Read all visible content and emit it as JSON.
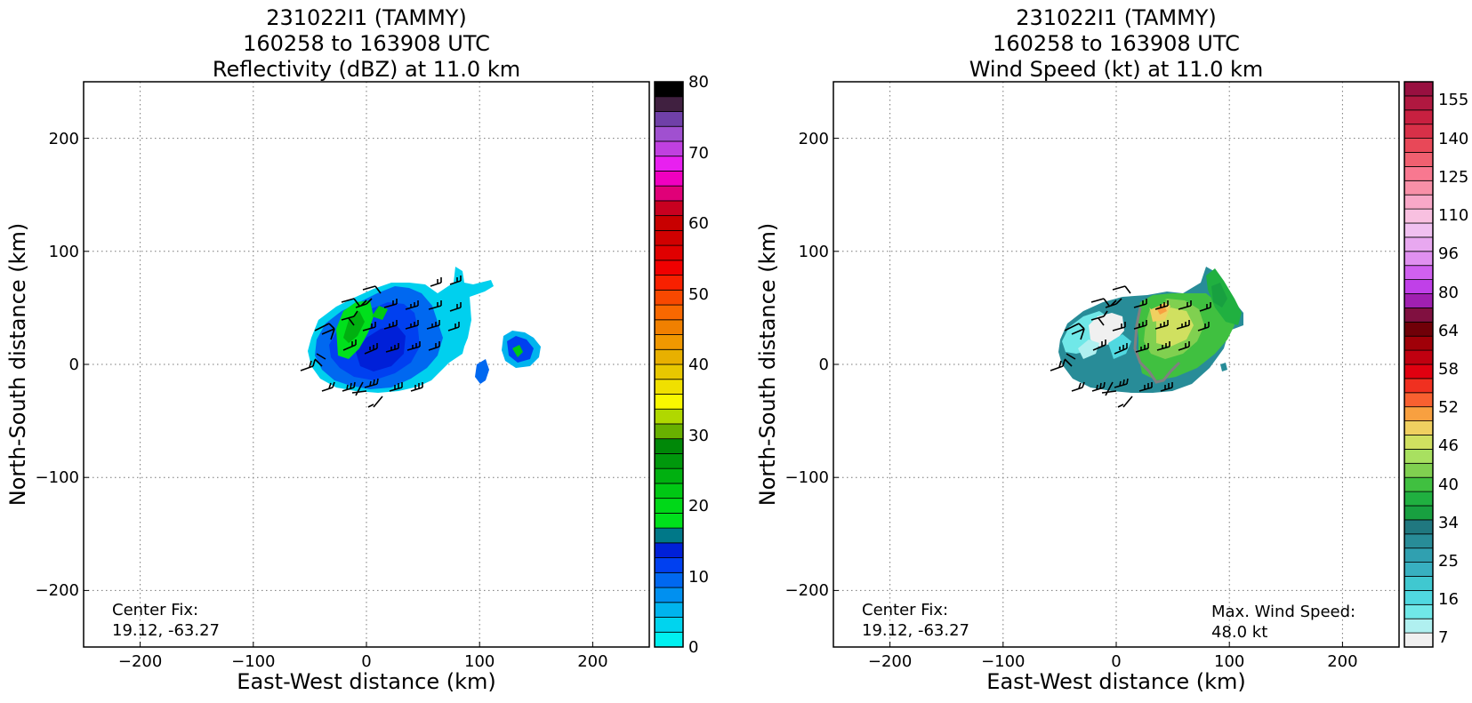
{
  "charts": [
    {
      "id": "reflectivity",
      "title_lines": [
        "231022I1 (TAMMY)",
        "160258 to 163908 UTC",
        "Reflectivity (dBZ) at 11.0 km"
      ],
      "xlabel": "East-West distance (km)",
      "ylabel": "North-South distance (km)",
      "x_ticks": [
        "−200",
        "−100",
        "0",
        "100",
        "200"
      ],
      "y_ticks": [
        "200",
        "100",
        "0",
        "−100",
        "−200"
      ],
      "notes": {
        "center_fix_label": "Center Fix:",
        "center_fix_value": "19.12, -63.27"
      },
      "colorbar_ticks": [
        "0",
        "10",
        "20",
        "30",
        "40",
        "50",
        "60",
        "70",
        "80"
      ],
      "colorbar_colors": [
        "#00f0f0",
        "#00d4ee",
        "#00b4ee",
        "#0090f0",
        "#0068f0",
        "#0040f0",
        "#0020d8",
        "#007888",
        "#00e01c",
        "#00d818",
        "#00c814",
        "#00b010",
        "#00980c",
        "#008808",
        "#68b000",
        "#b0d800",
        "#f8f800",
        "#f0e000",
        "#e8c800",
        "#e8b000",
        "#f09800",
        "#f08000",
        "#f86800",
        "#f84800",
        "#f82000",
        "#f00000",
        "#e00000",
        "#d00000",
        "#c80000",
        "#c80020",
        "#e00078",
        "#f000c0",
        "#e820f0",
        "#c040e0",
        "#a050d0",
        "#7040a8",
        "#402040",
        "#000000"
      ],
      "colorbar_range": [
        0,
        80
      ]
    },
    {
      "id": "wind_speed",
      "title_lines": [
        "231022I1 (TAMMY)",
        "160258 to 163908 UTC",
        "Wind Speed (kt) at 11.0 km"
      ],
      "xlabel": "East-West distance (km)",
      "ylabel": "North-South distance (km)",
      "x_ticks": [
        "−200",
        "−100",
        "0",
        "100",
        "200"
      ],
      "y_ticks": [
        "200",
        "100",
        "0",
        "−100",
        "−200"
      ],
      "notes": {
        "center_fix_label": "Center Fix:",
        "center_fix_value": "19.12, -63.27",
        "max_wind_label": "Max. Wind Speed:",
        "max_wind_value": "48.0 kt"
      },
      "colorbar_ticks": [
        "7",
        "16",
        "25",
        "34",
        "40",
        "46",
        "52",
        "58",
        "64",
        "80",
        "96",
        "110",
        "125",
        "140",
        "155"
      ],
      "colorbar_colors": [
        "#f0f0f0",
        "#b0f0f0",
        "#70e8e8",
        "#50d8e0",
        "#40c8d0",
        "#38b0c0",
        "#30a0b0",
        "#288c98",
        "#207880",
        "#18a040",
        "#20b040",
        "#40c040",
        "#80d050",
        "#a8e060",
        "#d0e060",
        "#f0d060",
        "#f8a040",
        "#f86030",
        "#f03020",
        "#e00010",
        "#c00010",
        "#a00008",
        "#700008",
        "#801040",
        "#a020b0",
        "#c040e8",
        "#d060f0",
        "#e090f0",
        "#e8a8f0",
        "#f0c0f0",
        "#f8c0e0",
        "#f8a8c8",
        "#f890a8",
        "#f87890",
        "#f06070",
        "#e84858",
        "#d83048",
        "#c82040",
        "#b01840",
        "#981040"
      ],
      "colorbar_ticks_value": [
        7,
        16,
        25,
        34,
        40,
        46,
        52,
        58,
        64,
        80,
        96,
        110,
        125,
        140,
        155
      ]
    }
  ],
  "chart_data": [
    {
      "type": "heatmap",
      "title": "231022I1 (TAMMY) 160258 to 163908 UTC Reflectivity (dBZ) at 11.0 km",
      "xlabel": "East-West distance (km)",
      "ylabel": "North-South distance (km)",
      "xlim": [
        -250,
        250
      ],
      "ylim": [
        -250,
        250
      ],
      "grid": true,
      "colorbar": {
        "range": [
          0,
          80
        ],
        "unit": "dBZ"
      },
      "center_fix": [
        19.12,
        -63.27
      ]
    },
    {
      "type": "heatmap",
      "title": "231022I1 (TAMMY) 160258 to 163908 UTC Wind Speed (kt) at 11.0 km",
      "xlabel": "East-West distance (km)",
      "ylabel": "North-South distance (km)",
      "xlim": [
        -250,
        250
      ],
      "ylim": [
        -250,
        250
      ],
      "grid": true,
      "colorbar": {
        "range": [
          7,
          160
        ],
        "unit": "kt"
      },
      "center_fix": [
        19.12,
        -63.27
      ],
      "max_wind_speed_kt": 48.0
    }
  ]
}
